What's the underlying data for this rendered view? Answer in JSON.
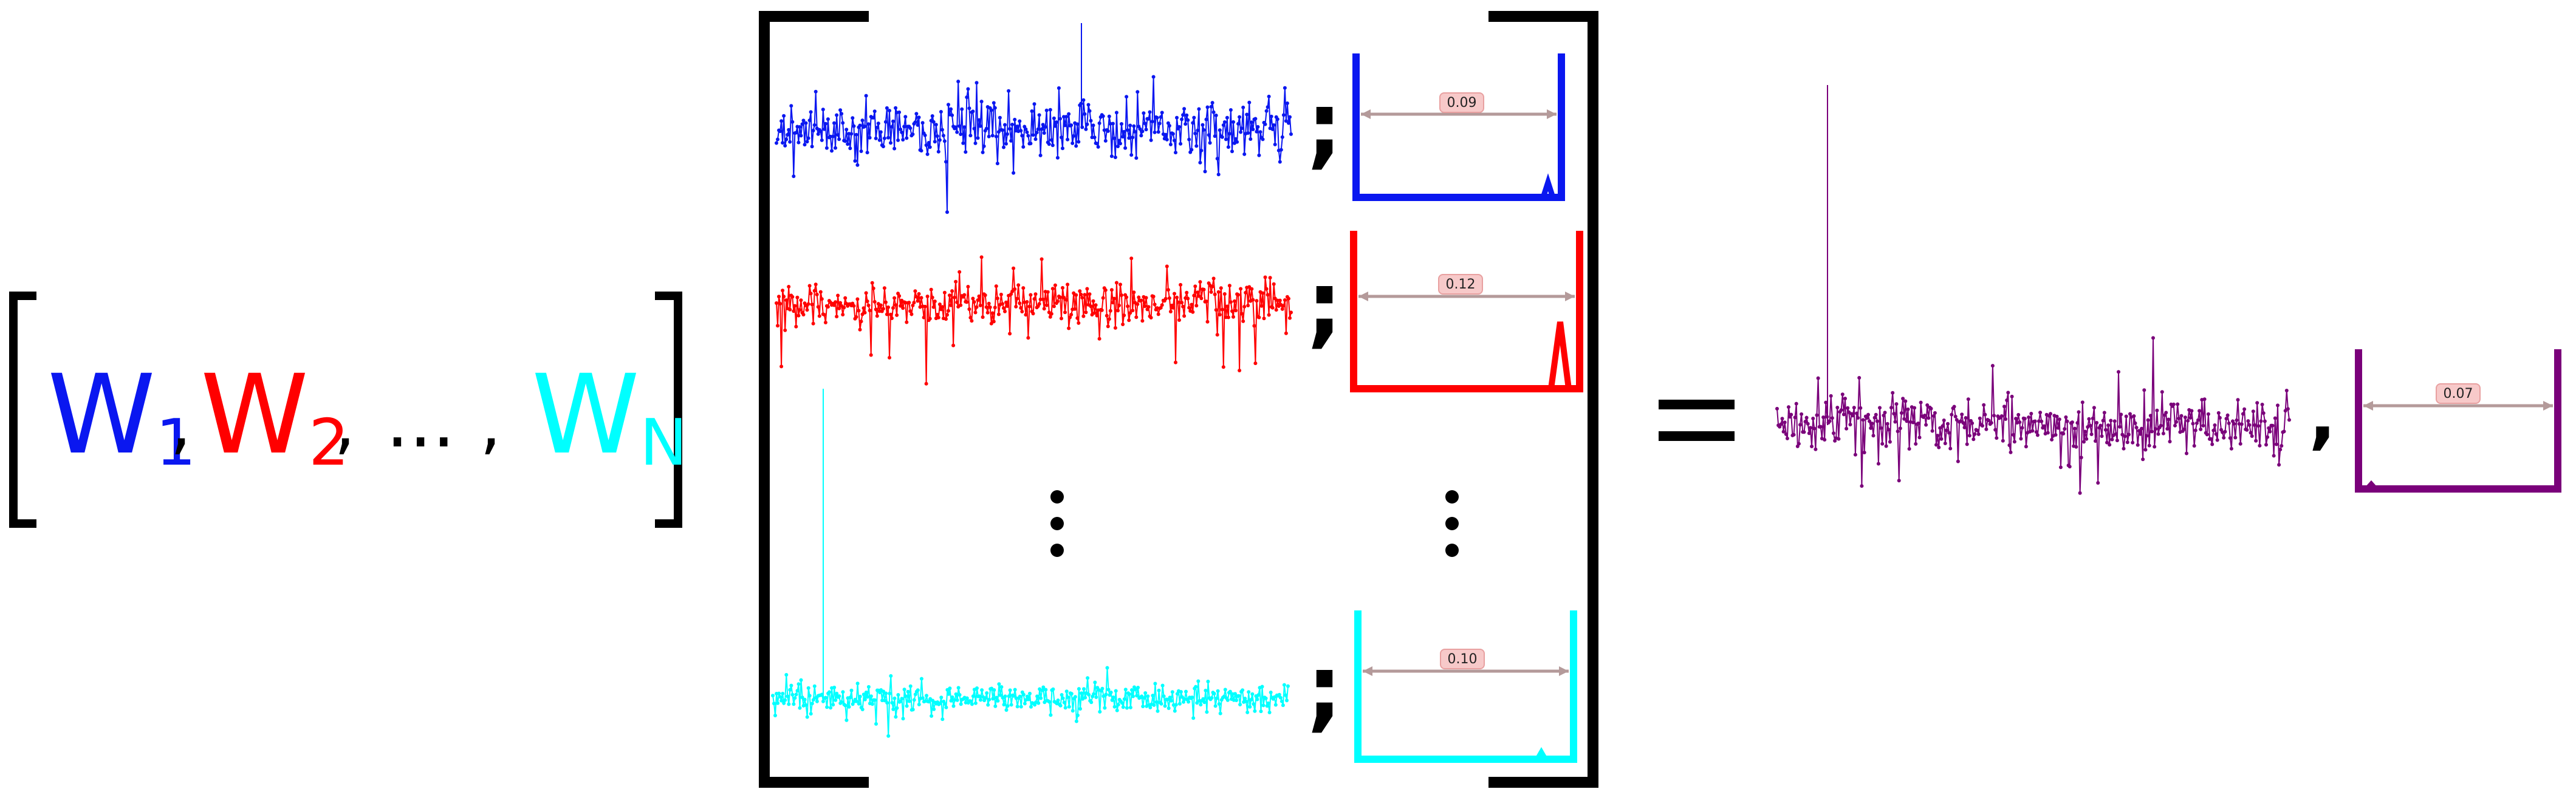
{
  "weights": {
    "w1": {
      "base": "W",
      "sub": "1"
    },
    "w2": {
      "base": "W",
      "sub": "2"
    },
    "wn": {
      "base": "W",
      "sub": "N"
    },
    "comma": ",",
    "ellipsis": "..."
  },
  "matrix": {
    "rows": [
      {
        "series": "w1",
        "color": "#0a17f0",
        "gap_value": "0.09",
        "hist_shape": "u-small-right"
      },
      {
        "series": "w2",
        "color": "#ff0000",
        "gap_value": "0.12",
        "hist_shape": "u-big-right"
      },
      {
        "series": "wn",
        "color": "#00ffff",
        "gap_value": "0.10",
        "hist_shape": "u-tiny-right"
      }
    ],
    "separator": ";",
    "vertical_dots": "⋮"
  },
  "result": {
    "equals": "=",
    "comma": ",",
    "color": "#7a007a",
    "gap_value": "0.07"
  },
  "colors": {
    "w1": "#0a17f0",
    "w2": "#ff0000",
    "wn": "#00ffff",
    "result": "#7a007a",
    "bracket": "#000000",
    "value_box_fill": "#f7c9c9",
    "value_arrow": "#b49a9a"
  },
  "icons": {
    "row_histogram": "u-shaped-histogram-icon",
    "row_gap_arrow": "double-headed-arrow-icon"
  }
}
